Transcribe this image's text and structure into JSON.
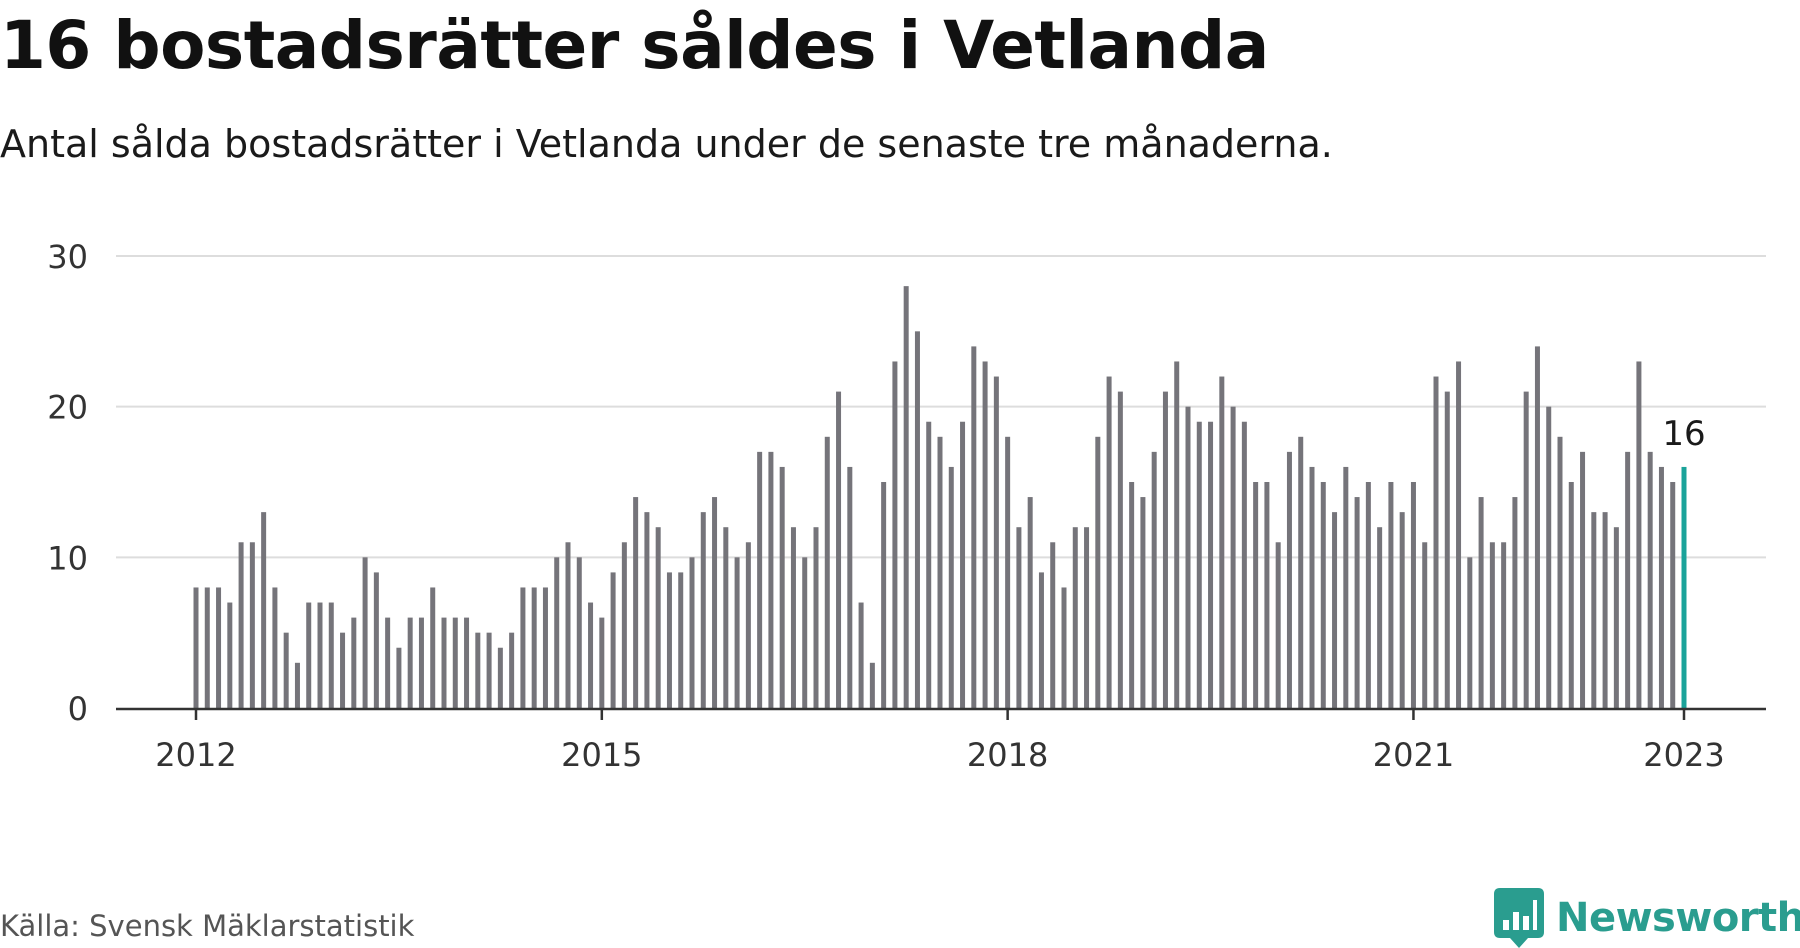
{
  "title": "16 bostadsrätter såldes i Vetlanda",
  "subtitle": "Antal sålda bostadsrätter i Vetlanda under de senaste tre månaderna.",
  "source": "Källa: Svensk Mäklarstatistik",
  "brand": {
    "name": "Newsworthy",
    "icon": "newsworthy-logo-icon",
    "color": "#2a9d8f"
  },
  "chart_data": {
    "type": "bar",
    "title": "16 bostadsrätter såldes i Vetlanda",
    "subtitle": "Antal sålda bostadsrätter i Vetlanda under de senaste tre månaderna.",
    "x_start": "2012-01",
    "x_interval": "month",
    "values": [
      8,
      8,
      8,
      7,
      11,
      11,
      13,
      8,
      5,
      3,
      7,
      7,
      7,
      5,
      6,
      10,
      9,
      6,
      4,
      6,
      6,
      8,
      6,
      6,
      6,
      5,
      5,
      4,
      5,
      8,
      8,
      8,
      10,
      11,
      10,
      7,
      6,
      9,
      11,
      14,
      13,
      12,
      9,
      9,
      10,
      13,
      14,
      12,
      10,
      11,
      17,
      17,
      16,
      12,
      10,
      12,
      18,
      21,
      16,
      7,
      3,
      15,
      23,
      28,
      25,
      19,
      18,
      16,
      19,
      24,
      23,
      22,
      18,
      12,
      14,
      9,
      11,
      8,
      12,
      12,
      18,
      22,
      21,
      15,
      14,
      17,
      21,
      23,
      20,
      19,
      19,
      22,
      20,
      19,
      15,
      15,
      11,
      17,
      18,
      16,
      15,
      13,
      16,
      14,
      15,
      12,
      15,
      13,
      15,
      11,
      22,
      21,
      23,
      10,
      14,
      11,
      11,
      14,
      21,
      24,
      20,
      18,
      15,
      17,
      13,
      13,
      12,
      17,
      23,
      17,
      16,
      15,
      16
    ],
    "highlight": {
      "index": 132,
      "value": 16,
      "label": "16",
      "color": "#1aa39a"
    },
    "bar_color": "#75747a",
    "x_ticks": [
      {
        "label": "2012",
        "index": 0
      },
      {
        "label": "2015",
        "index": 36
      },
      {
        "label": "2018",
        "index": 72
      },
      {
        "label": "2021",
        "index": 108
      },
      {
        "label": "2023",
        "index": 132
      }
    ],
    "y_ticks": [
      0,
      10,
      20,
      30
    ],
    "ylim": [
      0,
      30
    ],
    "grid": true,
    "xlabel": "",
    "ylabel": ""
  }
}
